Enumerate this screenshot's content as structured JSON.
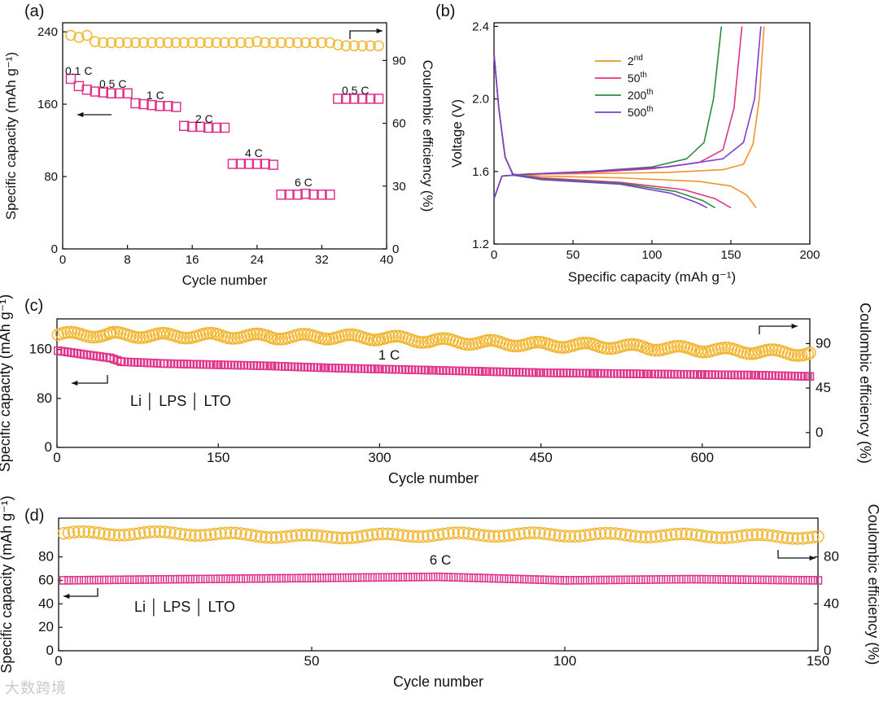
{
  "watermark": "大数跨境",
  "chart_data": [
    {
      "panel": "(a)",
      "type": "scatter",
      "xlabel": "Cycle number",
      "ylabel": "Specific capacity (mAh g⁻¹)",
      "y2label": "Coulombic efficiency (%)",
      "xlim": [
        0,
        40
      ],
      "ylim": [
        0,
        250
      ],
      "y2lim": [
        0,
        108
      ],
      "xticks": [
        0,
        8,
        16,
        24,
        32,
        40
      ],
      "yticks": [
        0,
        80,
        160,
        240
      ],
      "y2ticks": [
        0,
        30,
        60,
        90
      ],
      "annotations": [
        "0.1 C",
        "0.5 C",
        "1 C",
        "2 C",
        "4 C",
        "6 C",
        "0.5 C"
      ],
      "series": [
        {
          "role": "capacity",
          "axis": "left",
          "marker": "square",
          "color": "#e0338a",
          "x": [
            1,
            2,
            3,
            4,
            5,
            6,
            7,
            8,
            9,
            10,
            11,
            12,
            13,
            14,
            15,
            16,
            17,
            18,
            19,
            20,
            21,
            22,
            23,
            24,
            25,
            26,
            27,
            28,
            29,
            30,
            31,
            32,
            33,
            34,
            35,
            36,
            37,
            38,
            39
          ],
          "y": [
            188,
            180,
            176,
            174,
            173,
            172,
            172,
            172,
            161,
            160,
            159,
            158,
            158,
            157,
            136,
            135,
            135,
            134,
            134,
            134,
            94,
            94,
            94,
            94,
            94,
            93,
            60,
            60,
            60,
            61,
            60,
            60,
            60,
            166,
            166,
            166,
            166,
            166,
            166
          ]
        },
        {
          "role": "coulombic efficiency",
          "axis": "right",
          "marker": "circle",
          "color": "#f2b733",
          "x": [
            1,
            2,
            3,
            4,
            5,
            6,
            7,
            8,
            9,
            10,
            11,
            12,
            13,
            14,
            15,
            16,
            17,
            18,
            19,
            20,
            21,
            22,
            23,
            24,
            25,
            26,
            27,
            28,
            29,
            30,
            31,
            32,
            33,
            34,
            35,
            36,
            37,
            38,
            39
          ],
          "y": [
            102,
            101,
            102,
            99,
            98.5,
            98.5,
            98.5,
            98.5,
            98.5,
            98.5,
            98.5,
            98.5,
            98.5,
            98.5,
            98.5,
            98.5,
            98.5,
            98.5,
            98.5,
            98.5,
            98.5,
            98.5,
            98.5,
            99,
            98.5,
            98.5,
            98.5,
            98.5,
            98.5,
            98.5,
            98.5,
            98.5,
            98.5,
            97.5,
            97,
            97,
            97,
            97,
            97
          ]
        }
      ]
    },
    {
      "panel": "(b)",
      "type": "line",
      "xlabel": "Specific capacity (mAh g⁻¹)",
      "ylabel": "Voltage (V)",
      "xlim": [
        0,
        200
      ],
      "ylim": [
        1.2,
        2.42
      ],
      "xticks": [
        0,
        50,
        100,
        150,
        200
      ],
      "yticks": [
        1.2,
        1.6,
        2.0,
        2.4
      ],
      "legend": [
        "2nd",
        "50th",
        "200th",
        "500th"
      ],
      "series": [
        {
          "name": "2nd",
          "color": "#f0932b",
          "discharge": [
            [
              0,
              2.25
            ],
            [
              3,
              1.95
            ],
            [
              7,
              1.68
            ],
            [
              12,
              1.585
            ],
            [
              30,
              1.575
            ],
            [
              80,
              1.565
            ],
            [
              130,
              1.545
            ],
            [
              150,
              1.52
            ],
            [
              160,
              1.47
            ],
            [
              166,
              1.4
            ]
          ],
          "charge": [
            [
              0,
              1.45
            ],
            [
              5,
              1.575
            ],
            [
              20,
              1.585
            ],
            [
              60,
              1.588
            ],
            [
              110,
              1.595
            ],
            [
              145,
              1.61
            ],
            [
              158,
              1.64
            ],
            [
              164,
              1.75
            ],
            [
              168,
              2.0
            ],
            [
              171,
              2.4
            ]
          ]
        },
        {
          "name": "50th",
          "color": "#e0338a",
          "discharge": [
            [
              0,
              2.25
            ],
            [
              3,
              1.95
            ],
            [
              7,
              1.68
            ],
            [
              12,
              1.585
            ],
            [
              30,
              1.565
            ],
            [
              80,
              1.54
            ],
            [
              120,
              1.5
            ],
            [
              140,
              1.45
            ],
            [
              150,
              1.4
            ]
          ],
          "charge": [
            [
              0,
              1.45
            ],
            [
              5,
              1.575
            ],
            [
              20,
              1.585
            ],
            [
              60,
              1.595
            ],
            [
              100,
              1.615
            ],
            [
              130,
              1.65
            ],
            [
              145,
              1.72
            ],
            [
              152,
              1.95
            ],
            [
              157,
              2.4
            ]
          ]
        },
        {
          "name": "200th",
          "color": "#2e8b3a",
          "discharge": [
            [
              0,
              2.25
            ],
            [
              3,
              1.95
            ],
            [
              7,
              1.68
            ],
            [
              12,
              1.585
            ],
            [
              30,
              1.56
            ],
            [
              80,
              1.535
            ],
            [
              115,
              1.49
            ],
            [
              132,
              1.44
            ],
            [
              140,
              1.4
            ]
          ],
          "charge": [
            [
              0,
              1.45
            ],
            [
              5,
              1.575
            ],
            [
              20,
              1.585
            ],
            [
              60,
              1.6
            ],
            [
              100,
              1.625
            ],
            [
              122,
              1.67
            ],
            [
              133,
              1.76
            ],
            [
              139,
              2.0
            ],
            [
              144,
              2.4
            ]
          ]
        },
        {
          "name": "500th",
          "color": "#7f3fd0",
          "discharge": [
            [
              0,
              2.25
            ],
            [
              3,
              1.95
            ],
            [
              7,
              1.68
            ],
            [
              12,
              1.58
            ],
            [
              30,
              1.555
            ],
            [
              80,
              1.53
            ],
            [
              112,
              1.48
            ],
            [
              128,
              1.43
            ],
            [
              135,
              1.4
            ]
          ],
          "charge": [
            [
              0,
              1.45
            ],
            [
              5,
              1.575
            ],
            [
              20,
              1.585
            ],
            [
              60,
              1.6
            ],
            [
              110,
              1.625
            ],
            [
              145,
              1.67
            ],
            [
              158,
              1.76
            ],
            [
              165,
              2.0
            ],
            [
              169,
              2.4
            ]
          ]
        }
      ]
    },
    {
      "panel": "(c)",
      "type": "scatter",
      "xlabel": "Cycle number",
      "ylabel": "Specific capacity (mAh g⁻¹)",
      "y2label": "Coulombic efficiency (%)",
      "xlim": [
        0,
        700
      ],
      "ylim": [
        0,
        210
      ],
      "y2lim": [
        -15,
        115
      ],
      "xticks": [
        0,
        150,
        300,
        450,
        600
      ],
      "yticks": [
        0,
        80,
        160
      ],
      "y2ticks": [
        0,
        45,
        90
      ],
      "annotations": [
        "1 C",
        "Li │ LPS │ LTO"
      ],
      "series": [
        {
          "role": "capacity",
          "axis": "left",
          "marker": "square",
          "color": "#e0338a",
          "x": [
            1,
            25,
            50,
            60,
            100,
            150,
            200,
            250,
            300,
            350,
            400,
            450,
            500,
            550,
            600,
            650,
            700
          ],
          "y": [
            158,
            152,
            146,
            140,
            137,
            135,
            133,
            130,
            128,
            126,
            124,
            122,
            121,
            120,
            119,
            118,
            116
          ]
        },
        {
          "role": "coulombic efficiency",
          "axis": "right",
          "marker": "circle",
          "color": "#f2b733",
          "x": [
            1,
            50,
            100,
            150,
            200,
            250,
            300,
            350,
            400,
            450,
            500,
            550,
            600,
            650,
            700
          ],
          "y": [
            99,
            99,
            98,
            98,
            97,
            97,
            96,
            93,
            91,
            89,
            88,
            86,
            84,
            82,
            80
          ]
        }
      ]
    },
    {
      "panel": "(d)",
      "type": "scatter",
      "xlabel": "Cycle number",
      "ylabel": "Specific capacity (mAh g⁻¹)",
      "y2label": "Coulombic efficiency (%)",
      "xlim": [
        0,
        150
      ],
      "ylim": [
        0,
        113
      ],
      "y2lim": [
        0,
        113
      ],
      "xticks": [
        0,
        50,
        100,
        150
      ],
      "yticks": [
        0,
        20,
        40,
        60,
        80
      ],
      "y2ticks": [
        0,
        40,
        80
      ],
      "annotations": [
        "6 C",
        "Li │ LPS │ LTO"
      ],
      "series": [
        {
          "role": "capacity",
          "axis": "left",
          "marker": "square",
          "color": "#e0338a",
          "x": [
            1,
            25,
            50,
            75,
            100,
            125,
            150
          ],
          "y": [
            60,
            61,
            62,
            63,
            60,
            61,
            60
          ]
        },
        {
          "role": "coulombic efficiency",
          "axis": "right",
          "marker": "circle",
          "color": "#f2b733",
          "x": [
            1,
            25,
            50,
            75,
            100,
            125,
            150
          ],
          "y": [
            100,
            100,
            97,
            99,
            99,
            98,
            97
          ]
        }
      ]
    }
  ]
}
